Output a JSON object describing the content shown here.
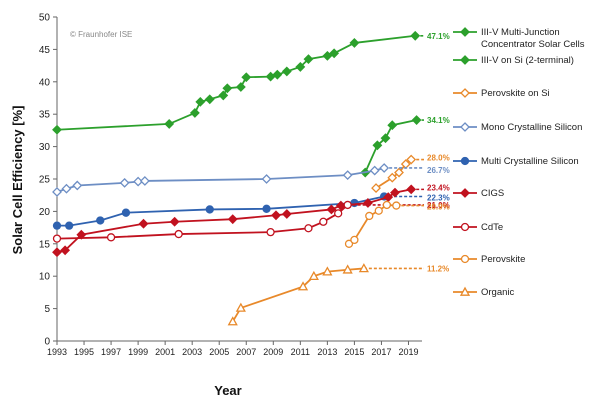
{
  "chart_data": {
    "type": "line",
    "title": "",
    "watermark": "© Fraunhofer ISE",
    "xlabel": "Year",
    "ylabel": "Solar Cell Efficiency [%]",
    "xlim": [
      1993,
      2020
    ],
    "ylim": [
      0,
      50
    ],
    "x_ticks": [
      "1993",
      "1995",
      "1997",
      "1999",
      "2001",
      "2003",
      "2005",
      "2007",
      "2009",
      "2011",
      "2013",
      "2015",
      "2017",
      "2019"
    ],
    "y_ticks": [
      "0",
      "5",
      "10",
      "15",
      "20",
      "25",
      "30",
      "35",
      "40",
      "45",
      "50"
    ],
    "grid": false,
    "legend_position": "right",
    "series": [
      {
        "name": "III-V Multi-Junction Concentrator Solar Cells",
        "color": "#2ca02c",
        "marker": "diamond-filled",
        "points": [
          [
            1993,
            32.6
          ],
          [
            2001.3,
            33.5
          ],
          [
            2003.2,
            35.2
          ],
          [
            2003.6,
            36.9
          ],
          [
            2004.3,
            37.3
          ],
          [
            2005.3,
            37.9
          ],
          [
            2005.6,
            39.0
          ],
          [
            2006.6,
            39.2
          ],
          [
            2007,
            40.7
          ],
          [
            2008.8,
            40.8
          ],
          [
            2009.3,
            41.1
          ],
          [
            2010,
            41.6
          ],
          [
            2011,
            42.3
          ],
          [
            2011.6,
            43.5
          ],
          [
            2013,
            44.0
          ],
          [
            2013.5,
            44.4
          ],
          [
            2015,
            46.0
          ],
          [
            2019.5,
            47.1
          ]
        ],
        "forecast": [
          2019.5,
          47.1
        ],
        "end_label": "47.1%"
      },
      {
        "name": "III-V on Si (2-terminal)",
        "color": "#2ca02c",
        "marker": "diamond-filled",
        "points": [
          [
            2015.8,
            26.0
          ],
          [
            2016.7,
            30.2
          ],
          [
            2017.3,
            31.3
          ],
          [
            2017.8,
            33.3
          ],
          [
            2019.6,
            34.1
          ]
        ],
        "forecast": [
          2019.6,
          34.1
        ],
        "end_label": "34.1%"
      },
      {
        "name": "Perovskite on Si",
        "color": "#e8892a",
        "marker": "diamond-open",
        "points": [
          [
            2016.6,
            23.6
          ],
          [
            2017.8,
            25.2
          ],
          [
            2018.3,
            26.0
          ],
          [
            2018.8,
            27.3
          ],
          [
            2019.2,
            28.0
          ]
        ],
        "forecast": [
          2019.2,
          28.0
        ],
        "end_label": "28.0%"
      },
      {
        "name": "Mono Crystalline Silicon",
        "color": "#6d8ec4",
        "marker": "diamond-open",
        "points": [
          [
            1993,
            23.0
          ],
          [
            1993.7,
            23.5
          ],
          [
            1994.5,
            24.0
          ],
          [
            1998,
            24.4
          ],
          [
            1999,
            24.6
          ],
          [
            1999.5,
            24.7
          ],
          [
            2008.5,
            25.0
          ],
          [
            2014.5,
            25.6
          ],
          [
            2016.5,
            26.3
          ],
          [
            2017.2,
            26.7
          ]
        ],
        "forecast": [
          2017.2,
          26.7
        ],
        "end_label": "26.7%"
      },
      {
        "name": "Multi Crystalline Silicon",
        "color": "#2f62b0",
        "marker": "circle-filled",
        "points": [
          [
            1993,
            17.8
          ],
          [
            1993.9,
            17.8
          ],
          [
            1996.2,
            18.6
          ],
          [
            1998.1,
            19.8
          ],
          [
            2004.3,
            20.3
          ],
          [
            2008.5,
            20.4
          ],
          [
            2015,
            21.3
          ],
          [
            2017.2,
            22.3
          ]
        ],
        "forecast": [
          2017.2,
          22.3
        ],
        "end_label": "22.3%"
      },
      {
        "name": "CIGS",
        "color": "#c1121f",
        "marker": "diamond-filled",
        "points": [
          [
            1993,
            13.7
          ],
          [
            1993.6,
            14.0
          ],
          [
            1994.8,
            16.4
          ],
          [
            1999.4,
            18.1
          ],
          [
            2001.7,
            18.4
          ],
          [
            2006,
            18.8
          ],
          [
            2009.2,
            19.4
          ],
          [
            2010,
            19.6
          ],
          [
            2013.3,
            20.3
          ],
          [
            2014,
            20.9
          ],
          [
            2016,
            21.3
          ],
          [
            2017.5,
            22.2
          ],
          [
            2018,
            22.9
          ],
          [
            2019.2,
            23.4
          ]
        ],
        "forecast": [
          2019.2,
          23.4
        ],
        "end_label": "23.4%"
      },
      {
        "name": "CdTe",
        "color": "#c1121f",
        "marker": "circle-open",
        "points": [
          [
            1993,
            15.8
          ],
          [
            1997,
            16.0
          ],
          [
            2002,
            16.5
          ],
          [
            2008.8,
            16.8
          ],
          [
            2011.6,
            17.4
          ],
          [
            2012.7,
            18.4
          ],
          [
            2013.8,
            19.7
          ],
          [
            2014.5,
            21.0
          ]
        ],
        "forecast": [
          2014.5,
          21.0
        ],
        "end_label": "21.0%"
      },
      {
        "name": "Perovskite",
        "color": "#e8892a",
        "marker": "circle-open",
        "points": [
          [
            2014.6,
            15.0
          ],
          [
            2015,
            15.6
          ],
          [
            2016.1,
            19.3
          ],
          [
            2016.8,
            20.1
          ],
          [
            2017.4,
            21.0
          ],
          [
            2018.1,
            20.9
          ]
        ],
        "forecast": [
          2018.1,
          20.9
        ],
        "end_label": "20.9%"
      },
      {
        "name": "Organic",
        "color": "#e8892a",
        "marker": "triangle-open",
        "points": [
          [
            2006,
            3.0
          ],
          [
            2006.6,
            5.1
          ],
          [
            2011.2,
            8.4
          ],
          [
            2012,
            10.0
          ],
          [
            2013,
            10.7
          ],
          [
            2014.5,
            11.0
          ],
          [
            2015.7,
            11.2
          ]
        ],
        "forecast": [
          2015.7,
          11.2
        ],
        "end_label": "11.2%"
      }
    ]
  }
}
